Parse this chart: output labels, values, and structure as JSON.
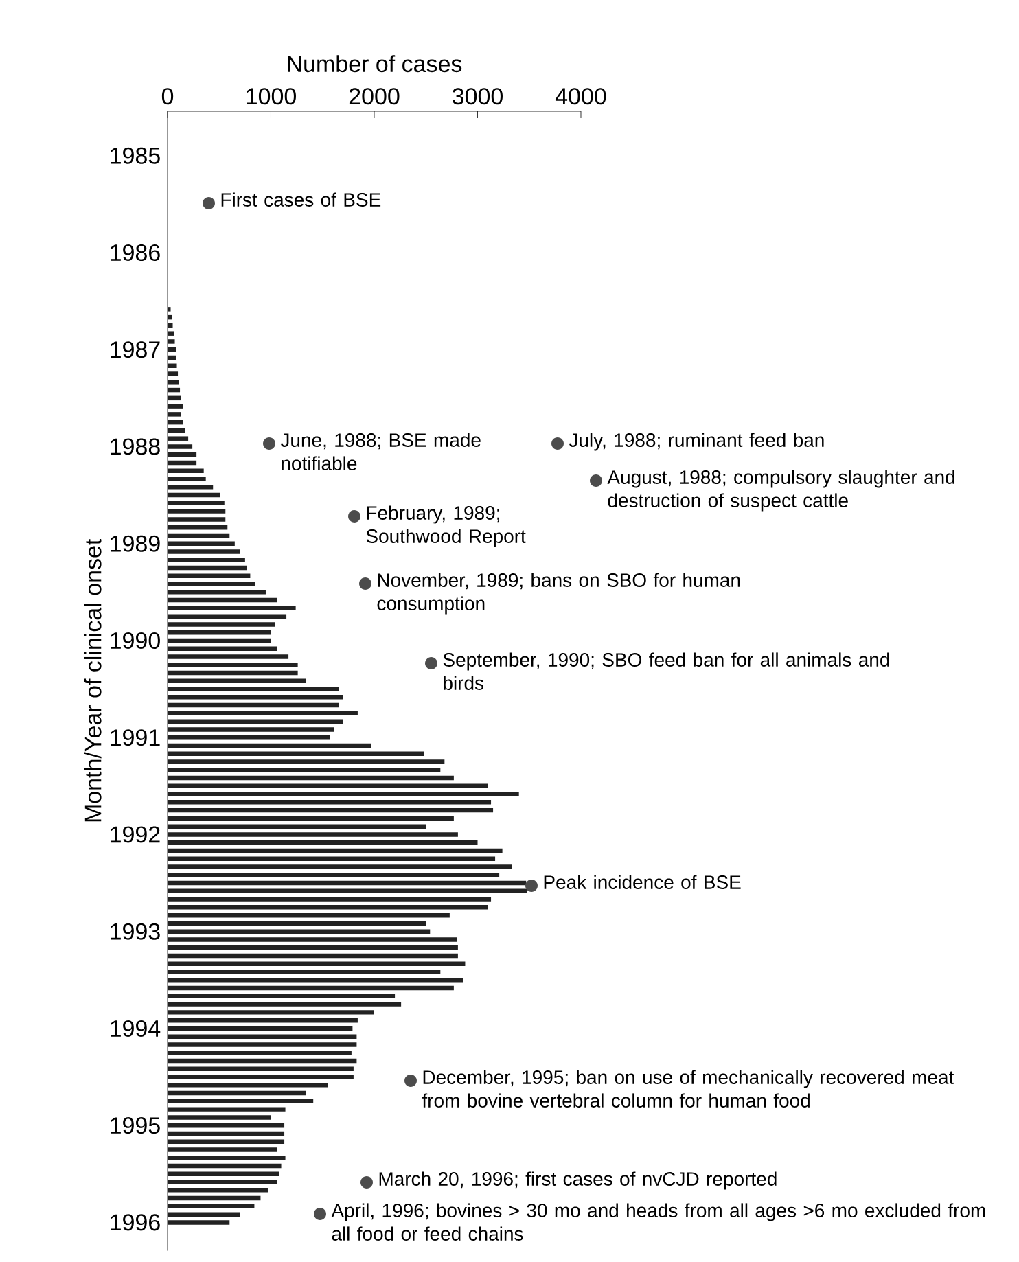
{
  "chart_data": {
    "type": "bar",
    "orientation": "horizontal",
    "xlabel": "Number of cases",
    "ylabel": "Month/Year of clinical onset",
    "xlim": [
      0,
      4000
    ],
    "xticks": [
      0,
      1000,
      2000,
      3000,
      4000
    ],
    "color": "#222222",
    "categories": [
      null,
      null,
      null,
      null,
      null,
      "1985",
      null,
      null,
      null,
      null,
      null,
      null,
      null,
      null,
      null,
      null,
      null,
      "1986",
      null,
      null,
      null,
      null,
      null,
      null,
      null,
      null,
      null,
      null,
      null,
      "1987",
      null,
      null,
      null,
      null,
      null,
      null,
      null,
      null,
      null,
      null,
      null,
      "1988",
      null,
      null,
      null,
      null,
      null,
      null,
      null,
      null,
      null,
      null,
      null,
      "1989",
      null,
      null,
      null,
      null,
      null,
      null,
      null,
      null,
      null,
      null,
      null,
      "1990",
      null,
      null,
      null,
      null,
      null,
      null,
      null,
      null,
      null,
      null,
      null,
      "1991",
      null,
      null,
      null,
      null,
      null,
      null,
      null,
      null,
      null,
      null,
      null,
      "1992",
      null,
      null,
      null,
      null,
      null,
      null,
      null,
      null,
      null,
      null,
      null,
      "1993",
      null,
      null,
      null,
      null,
      null,
      null,
      null,
      null,
      null,
      null,
      null,
      "1994",
      null,
      null,
      null,
      null,
      null,
      null,
      null,
      null,
      null,
      null,
      null,
      "1995",
      null,
      null,
      null,
      null,
      null,
      null,
      null,
      null,
      null,
      null,
      null,
      "1996"
    ],
    "values": [
      null,
      null,
      null,
      null,
      null,
      null,
      null,
      null,
      null,
      null,
      null,
      null,
      null,
      null,
      null,
      null,
      null,
      null,
      null,
      null,
      null,
      null,
      null,
      null,
      30,
      40,
      50,
      60,
      70,
      80,
      80,
      90,
      100,
      110,
      120,
      130,
      150,
      130,
      150,
      170,
      200,
      240,
      280,
      280,
      350,
      370,
      440,
      510,
      550,
      560,
      560,
      580,
      600,
      650,
      700,
      750,
      770,
      800,
      850,
      950,
      1060,
      1240,
      1150,
      1040,
      1000,
      1000,
      1060,
      1170,
      1260,
      1260,
      1340,
      1660,
      1700,
      1660,
      1840,
      1700,
      1610,
      1570,
      1970,
      2480,
      2680,
      2640,
      2770,
      3100,
      3400,
      3130,
      3150,
      2770,
      2500,
      2810,
      3000,
      3240,
      3170,
      3330,
      3210,
      3470,
      3480,
      3130,
      3100,
      2730,
      2500,
      2540,
      2800,
      2810,
      2810,
      2880,
      2640,
      2860,
      2770,
      2200,
      2260,
      2000,
      1840,
      1790,
      1830,
      1830,
      1780,
      1830,
      1800,
      1800,
      1550,
      1340,
      1410,
      1140,
      1000,
      1130,
      1130,
      1130,
      1060,
      1140,
      1100,
      1080,
      1060,
      970,
      900,
      840,
      700,
      600
    ],
    "annotations": [
      "First cases of BSE",
      "June, 1988; BSE made notifiable",
      "July, 1988; ruminant feed ban",
      "August, 1988; compulsory slaughter and destruction of suspect cattle",
      "February, 1989; Southwood Report",
      "November, 1989; bans on SBO for human consumption",
      "September, 1990; SBO feed ban for all animals and birds",
      "Peak incidence of BSE",
      "December, 1995; ban on use of mechanically recovered meat from bovine vertebral column for human food",
      "March 20, 1996; first cases of nvCJD reported",
      "April, 1996; bovines > 30 mo and heads from all ages >6 mo excluded from all food or feed chains"
    ]
  }
}
